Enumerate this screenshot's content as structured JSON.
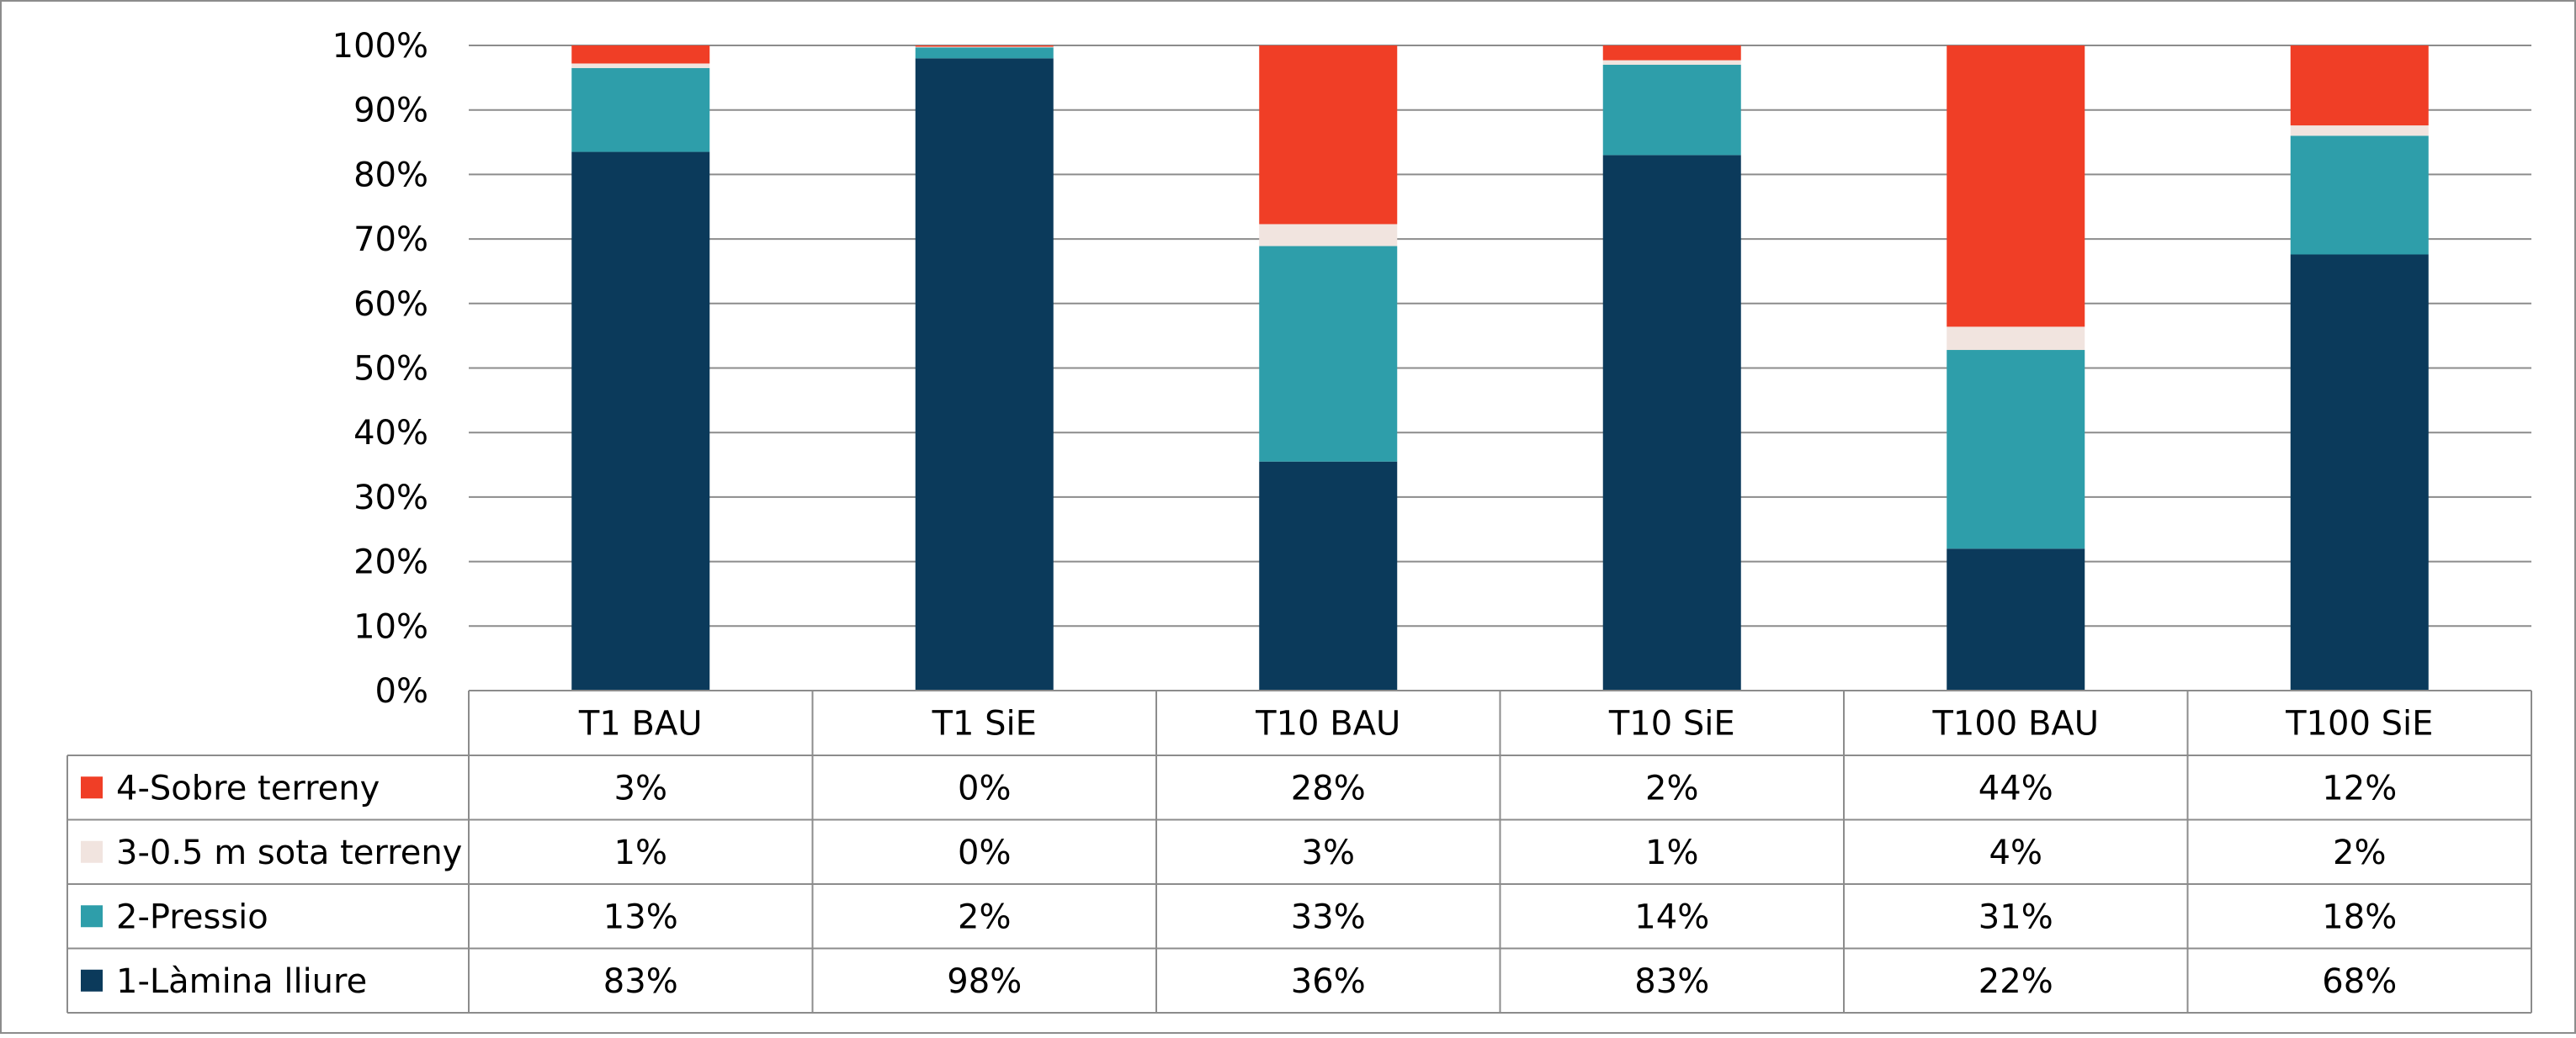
{
  "chart_data": {
    "type": "bar",
    "stacked": true,
    "percent": true,
    "ylim": [
      0,
      100
    ],
    "y_ticks": [
      "0%",
      "10%",
      "20%",
      "30%",
      "40%",
      "50%",
      "60%",
      "70%",
      "80%",
      "90%",
      "100%"
    ],
    "grid": true,
    "legend_placement": "data-table-left",
    "categories": [
      "T1 BAU",
      "T1 SiE",
      "T10 BAU",
      "T10 SiE",
      "T100 BAU",
      "T100 SiE"
    ],
    "series": [
      {
        "name": "1-Làmina lliure",
        "color": "#0b3a5b",
        "values": [
          83.5,
          98.0,
          35.5,
          83.0,
          22.0,
          67.6
        ],
        "labels": [
          "83%",
          "98%",
          "36%",
          "83%",
          "22%",
          "68%"
        ]
      },
      {
        "name": "2-Pressio",
        "color": "#2e9eaa",
        "values": [
          13.0,
          1.7,
          33.4,
          14.0,
          30.8,
          18.4
        ],
        "labels": [
          "13%",
          "2%",
          "33%",
          "14%",
          "31%",
          "18%"
        ]
      },
      {
        "name": "3-0.5 m sota terreny",
        "color": "#f1e4df",
        "values": [
          0.7,
          0.1,
          3.4,
          0.7,
          3.6,
          1.6
        ],
        "labels": [
          "1%",
          "0%",
          "3%",
          "1%",
          "4%",
          "2%"
        ]
      },
      {
        "name": "4-Sobre terreny",
        "color": "#f03e26",
        "values": [
          2.8,
          0.2,
          27.7,
          2.3,
          43.6,
          12.4
        ],
        "labels": [
          "3%",
          "0%",
          "28%",
          "2%",
          "44%",
          "12%"
        ]
      }
    ]
  }
}
